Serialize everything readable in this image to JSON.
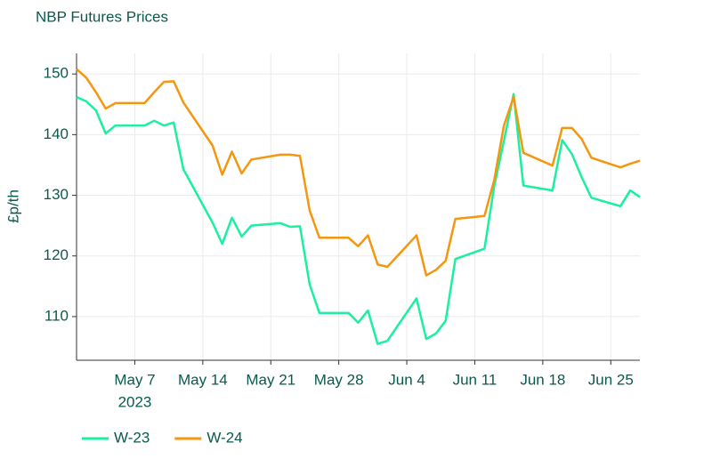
{
  "chart_data": {
    "type": "line",
    "title": "NBP Futures Prices",
    "ylabel": "£p/th",
    "x": [
      "2023-05-01",
      "2023-05-02",
      "2023-05-03",
      "2023-05-04",
      "2023-05-05",
      "2023-05-08",
      "2023-05-09",
      "2023-05-10",
      "2023-05-11",
      "2023-05-12",
      "2023-05-15",
      "2023-05-16",
      "2023-05-17",
      "2023-05-18",
      "2023-05-19",
      "2023-05-22",
      "2023-05-23",
      "2023-05-24",
      "2023-05-25",
      "2023-05-26",
      "2023-05-29",
      "2023-05-30",
      "2023-05-31",
      "2023-06-01",
      "2023-06-02",
      "2023-06-05",
      "2023-06-06",
      "2023-06-07",
      "2023-06-08",
      "2023-06-09",
      "2023-06-12",
      "2023-06-13",
      "2023-06-14",
      "2023-06-15",
      "2023-06-16",
      "2023-06-19",
      "2023-06-20",
      "2023-06-21",
      "2023-06-22",
      "2023-06-23",
      "2023-06-26",
      "2023-06-27",
      "2023-06-28"
    ],
    "series": [
      {
        "name": "W-23",
        "color": "#1af0a0",
        "values": [
          146.2,
          145.5,
          144,
          140.2,
          141.5,
          141.5,
          142.3,
          141.5,
          142,
          134.3,
          125.5,
          122,
          126.3,
          123.2,
          125,
          125.4,
          124.8,
          124.9,
          115.3,
          110.6,
          110.6,
          109,
          111,
          105.5,
          106,
          113,
          106.3,
          107.2,
          109.3,
          119.5,
          121.2,
          131.5,
          139,
          146.7,
          131.6,
          130.8,
          139.1,
          136.8,
          133,
          129.6,
          128.2,
          130.8,
          129.7
        ]
      },
      {
        "name": "W-24",
        "color": "#f5960f",
        "values": [
          150.8,
          149.4,
          147,
          144.3,
          145.2,
          145.2,
          147,
          148.7,
          148.8,
          145.3,
          138.2,
          133.4,
          137.2,
          133.6,
          135.9,
          136.7,
          136.7,
          136.5,
          127.5,
          123,
          123,
          121.6,
          123.4,
          118.6,
          118.2,
          123.4,
          116.8,
          117.7,
          119.2,
          126.1,
          126.6,
          132.5,
          141.5,
          146.2,
          137,
          134.9,
          141.1,
          141.1,
          139.3,
          136.2,
          134.6,
          135.2,
          135.7
        ]
      }
    ],
    "xlim": [
      "2023-05-01",
      "2023-06-28"
    ],
    "xticks": [
      {
        "value": "2023-05-07",
        "label": "May 7"
      },
      {
        "value": "2023-05-14",
        "label": "May 14"
      },
      {
        "value": "2023-05-21",
        "label": "May 21"
      },
      {
        "value": "2023-05-28",
        "label": "May 28"
      },
      {
        "value": "2023-06-04",
        "label": "Jun 4"
      },
      {
        "value": "2023-06-11",
        "label": "Jun 11"
      },
      {
        "value": "2023-06-18",
        "label": "Jun 18"
      },
      {
        "value": "2023-06-25",
        "label": "Jun 25"
      }
    ],
    "xtick_year": "2023",
    "ylim": [
      102.8,
      153.4
    ],
    "yticks": [
      110,
      120,
      130,
      140,
      150
    ],
    "grid": true,
    "legend": "bottom-left"
  }
}
